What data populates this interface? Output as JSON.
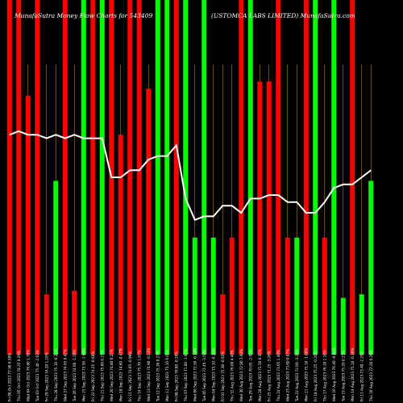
{
  "chart_data": {
    "type": "bar",
    "title_left": "MunafaSutra Money Flow Charts for 543409",
    "title_right": "(USTOMCA LABS LIMITED) MunafaSutra.com",
    "colors": {
      "up": "#00ff00",
      "down": "#ff0000",
      "line": "#ffffff",
      "gridline": "#b8860b",
      "background": "#000000"
    },
    "categories": [
      "Fri 06 Oct 2023",
      "Thu 05 Oct 2023",
      "Wed 04 Oct 2023",
      "Tue 03 Oct 2023",
      "Fri 29 Sep 2023",
      "Thu 28 Sep 2023",
      "Wed 27 Sep 2023",
      "Tue 26 Sep 2023",
      "Mon 25 Sep 2023",
      "Fri 22 Sep 2023",
      "Thu 21 Sep 2023",
      "Wed 20 Sep 2023",
      "Mon 18 Sep 2023",
      "Fri 15 Sep 2023",
      "Thu 14 Sep 2023",
      "Wed 13 Sep 2023",
      "Tue 12 Sep 2023",
      "Mon 11 Sep 2023",
      "Fri 08 Sep 2023",
      "Thu 07 Sep 2023",
      "Wed 06 Sep 2023",
      "Tue 05 Sep 2023",
      "Mon 04 Sep 2023",
      "Fri 01 Sep 2023",
      "Thu 31 Aug 2023",
      "Wed 30 Aug 2023",
      "Tue 29 Aug 2023",
      "Mon 28 Aug 2023",
      "Fri 25 Aug 2023",
      "Thu 24 Aug 2023",
      "Wed 23 Aug 2023",
      "Tue 22 Aug 2023",
      "Mon 21 Aug 2023",
      "Fri 18 Aug 2023",
      "Thu 17 Aug 2023",
      "Wed 16 Aug 2023",
      "Tue 15 Aug 2023",
      "Mon 14 Aug 2023",
      "Fri 11 Aug 2023",
      "Thu 10 Aug 2023"
    ],
    "price_labels": [
      "77.90",
      "78.25",
      "76.80",
      "75.40",
      "74.20",
      "75.10",
      "74.95",
      "74.60",
      "75.50",
      "74.25",
      "75.00",
      "74.80",
      "74.60",
      "74.95",
      "75.70",
      "74.90",
      "75.30",
      "75.10",
      "70.80",
      "71.00",
      "72.50",
      "72.45",
      "75.10",
      "75.30",
      "76.00",
      "72.80",
      "70.05",
      "71.50",
      "71.25",
      "73.65",
      "73.60",
      "72.60",
      "75.10",
      "75.25",
      "76.10",
      "76.40",
      "75.20",
      "75.10",
      "73.40",
      "72.20"
    ],
    "change_labels": [
      "0.58%",
      "0.29%",
      "1.78%",
      "-2.03%",
      "1.19%",
      "-0.21%",
      "0.47%",
      "-1.20%",
      "-1.68%",
      "-0.68%",
      "0.27%",
      "0.27%",
      "-0.47%",
      "-0.99%",
      "1.07%",
      "-0.53%",
      "0.27%",
      "6.07%",
      "-0.28%",
      "-1.97%",
      "-0.14%",
      "-3.54%",
      "-0.28%",
      "-0.92%",
      "4.40%",
      "3.93%",
      "-2.03%",
      "0.35%",
      "-3.26%",
      "1.40%",
      "0.07%",
      "-3.26%",
      "-1.08%",
      "-0.20%",
      "1.10%",
      "-0.84%",
      "0.21%",
      "-0.39%",
      "-2.29%",
      "0.20%"
    ],
    "directions": [
      "down",
      "down",
      "down",
      "down",
      "down",
      "up",
      "down",
      "down",
      "up",
      "down",
      "up",
      "down",
      "down",
      "down",
      "down",
      "down",
      "up",
      "up",
      "down",
      "up",
      "up",
      "up",
      "up",
      "down",
      "down",
      "down",
      "up",
      "down",
      "down",
      "down",
      "down",
      "up",
      "down",
      "up",
      "down",
      "up",
      "up",
      "down",
      "up",
      "up"
    ],
    "values": [
      100,
      100,
      73,
      100,
      17,
      49,
      100,
      18,
      100,
      100,
      100,
      100,
      62,
      100,
      100,
      75,
      100,
      100,
      100,
      100,
      33,
      100,
      33,
      17,
      33,
      100,
      100,
      77,
      77,
      100,
      33,
      33,
      100,
      100,
      33,
      100,
      16,
      100,
      17,
      49
    ],
    "money_flow_line": [
      62,
      63,
      62,
      62,
      61,
      62,
      61,
      62,
      61,
      61,
      61,
      50,
      50,
      52,
      52,
      55,
      56,
      56,
      59,
      44,
      38,
      39,
      39,
      42,
      42,
      40,
      44,
      44,
      45,
      45,
      43,
      43,
      40,
      40,
      43,
      47,
      48,
      48,
      50,
      52
    ],
    "ylim": [
      0,
      100
    ],
    "grid": true,
    "legend": "none"
  }
}
